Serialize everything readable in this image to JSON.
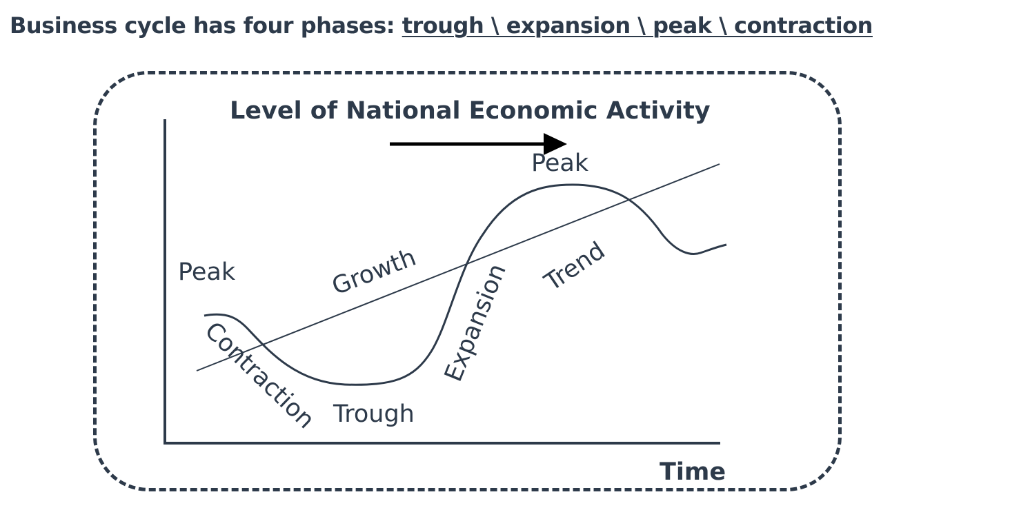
{
  "heading": {
    "prefix": "Business cycle has four phases: ",
    "phases": "trough \\ expansion \\  peak \\ contraction"
  },
  "diagram": {
    "title": "Level of National Economic Activity",
    "x_axis_label": "Time",
    "labels": {
      "peak_left": "Peak",
      "peak_top": "Peak",
      "growth": "Growth",
      "trend": "Trend",
      "expansion": "Expansion",
      "contraction": "Contraction",
      "trough": "Trough"
    }
  },
  "colors": {
    "ink": "#2d3a4a",
    "arrow": "#000000",
    "background": "#ffffff"
  }
}
